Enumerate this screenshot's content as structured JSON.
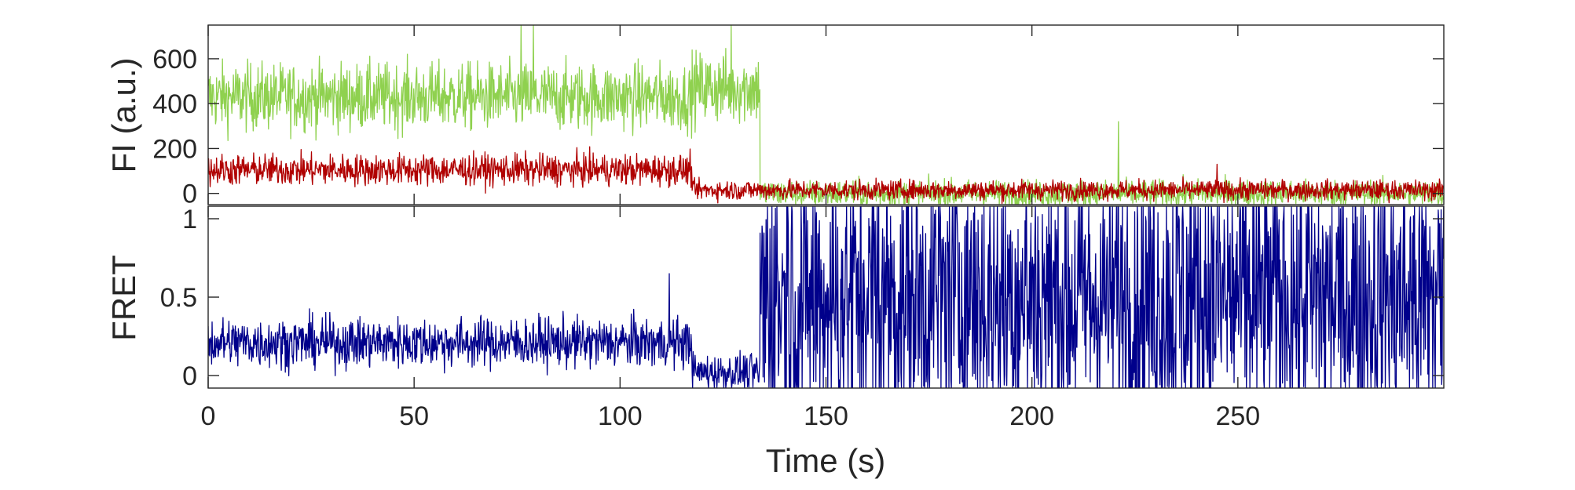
{
  "chart_data": [
    {
      "type": "line",
      "ylabel": "FI (a.u.)",
      "xlim": [
        0,
        300
      ],
      "ylim": [
        -50,
        750
      ],
      "yticks": [
        0,
        200,
        400,
        600
      ],
      "ytick_labels": [
        "0",
        "200",
        "400",
        "600"
      ],
      "grid": false,
      "colors": {
        "donor": "#8fd14f",
        "acceptor": "#b00000"
      },
      "series": [
        {
          "key": "donor",
          "segments": [
            {
              "x0": 0,
              "x1": 117.5,
              "mean": 430,
              "noise": 75
            },
            {
              "x0": 117.5,
              "x1": 134,
              "mean": 470,
              "noise": 80
            },
            {
              "x0": 134,
              "x1": 300,
              "mean": 0,
              "noise": 30
            }
          ],
          "spikes": [
            [
              221,
              320
            ],
            [
              76,
              750
            ],
            [
              79,
              750
            ],
            [
              127,
              750
            ]
          ]
        },
        {
          "key": "acceptor",
          "segments": [
            {
              "x0": 0,
              "x1": 117.5,
              "mean": 105,
              "noise": 35
            },
            {
              "x0": 117.5,
              "x1": 300,
              "mean": 15,
              "noise": 22
            }
          ],
          "spikes": [
            [
              245,
              130
            ]
          ]
        }
      ]
    },
    {
      "type": "line",
      "ylabel": "FRET",
      "xlabel": "Time (s)",
      "xlim": [
        0,
        300
      ],
      "ylim": [
        -0.08,
        1.08
      ],
      "xticks": [
        0,
        50,
        100,
        150,
        200,
        250
      ],
      "xtick_labels": [
        "0",
        "50",
        "100",
        "150",
        "200",
        "250"
      ],
      "yticks": [
        0,
        0.5,
        1
      ],
      "ytick_labels": [
        "0",
        "0.5",
        "1"
      ],
      "grid": false,
      "colors": {
        "fret": "#00008b"
      },
      "series": [
        {
          "key": "fret",
          "segments": [
            {
              "x0": 0,
              "x1": 117.5,
              "mean": 0.21,
              "noise": 0.08
            },
            {
              "x0": 117.5,
              "x1": 134,
              "mean": 0.02,
              "noise": 0.06
            },
            {
              "x0": 134,
              "x1": 300,
              "mean": 0.5,
              "noise": 0.5,
              "clip": [
                -0.08,
                1.08
              ]
            }
          ],
          "spikes": [
            [
              112,
              0.65
            ]
          ]
        }
      ]
    }
  ]
}
